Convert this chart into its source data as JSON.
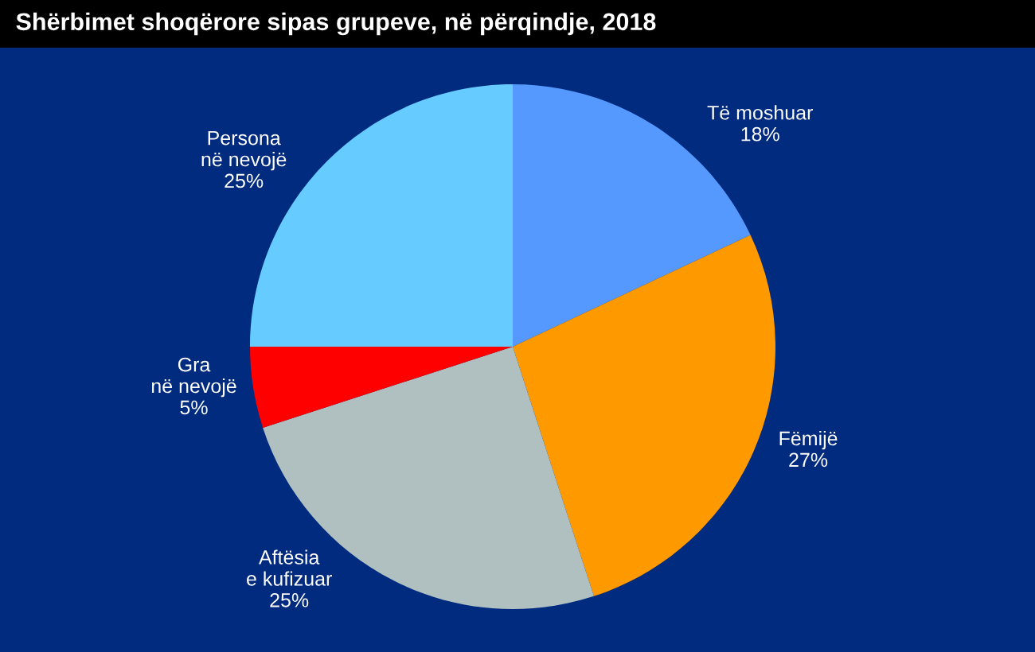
{
  "chart_data": {
    "type": "pie",
    "title": "Shërbimet shoqërore sipas grupeve, në përqindje, 2018",
    "categories": [
      "Të moshuar",
      "Fëmijë",
      "Aftësia\ne kufizuar",
      "Gra\nnë nevojë",
      "Persona\nnë nevojë"
    ],
    "values": [
      18,
      27,
      25,
      5,
      25
    ],
    "colors": [
      "#5599ff",
      "#ff9900",
      "#b0c0c0",
      "#ff0000",
      "#66ccff"
    ],
    "value_labels": [
      "18%",
      "27%",
      "25%",
      "5%",
      "25%"
    ],
    "legend": false
  }
}
